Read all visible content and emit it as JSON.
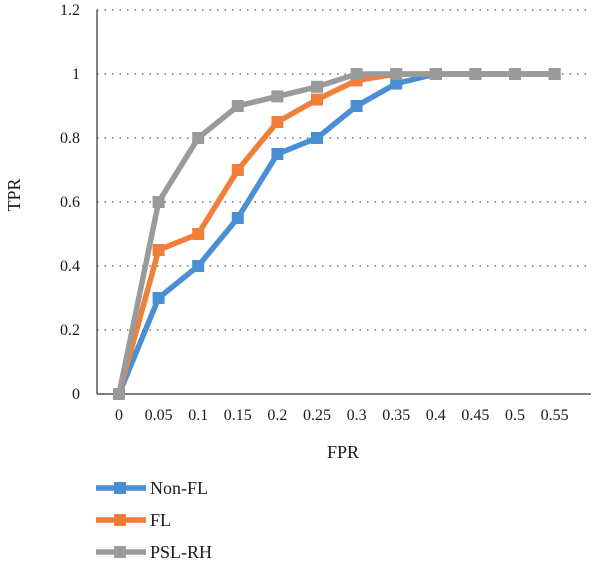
{
  "chart_data": {
    "type": "line",
    "xlabel": "FPR",
    "ylabel": "TPR",
    "x_ticks": [
      "0",
      "0.05",
      "0.1",
      "0.15",
      "0.2",
      "0.25",
      "0.3",
      "0.35",
      "0.4",
      "0.45",
      "0.5",
      "0.55"
    ],
    "y_ticks": [
      "0",
      "0.2",
      "0.4",
      "0.6",
      "0.8",
      "1",
      "1.2"
    ],
    "ylim": [
      0,
      1.2
    ],
    "grid": "horizontal dotted",
    "legend_position": "bottom-left",
    "series": [
      {
        "name": "Non-FL",
        "color": "#4a8fd4",
        "x": [
          0,
          0.05,
          0.1,
          0.15,
          0.2,
          0.25,
          0.3,
          0.35,
          0.4,
          0.45,
          0.5,
          0.55
        ],
        "values": [
          0,
          0.3,
          0.4,
          0.55,
          0.75,
          0.8,
          0.9,
          0.97,
          1.0,
          1.0,
          1.0,
          1.0
        ]
      },
      {
        "name": "FL",
        "color": "#f07f3a",
        "x": [
          0,
          0.05,
          0.1,
          0.15,
          0.2,
          0.25,
          0.3,
          0.35,
          0.4,
          0.45,
          0.5,
          0.55
        ],
        "values": [
          0,
          0.45,
          0.5,
          0.7,
          0.85,
          0.92,
          0.98,
          1.0,
          1.0,
          1.0,
          1.0,
          1.0
        ]
      },
      {
        "name": "PSL-RH",
        "color": "#9a9a9a",
        "x": [
          0,
          0.05,
          0.1,
          0.15,
          0.2,
          0.25,
          0.3,
          0.35,
          0.4,
          0.45,
          0.5,
          0.55
        ],
        "values": [
          0,
          0.6,
          0.8,
          0.9,
          0.93,
          0.96,
          1.0,
          1.0,
          1.0,
          1.0,
          1.0,
          1.0
        ]
      }
    ]
  }
}
